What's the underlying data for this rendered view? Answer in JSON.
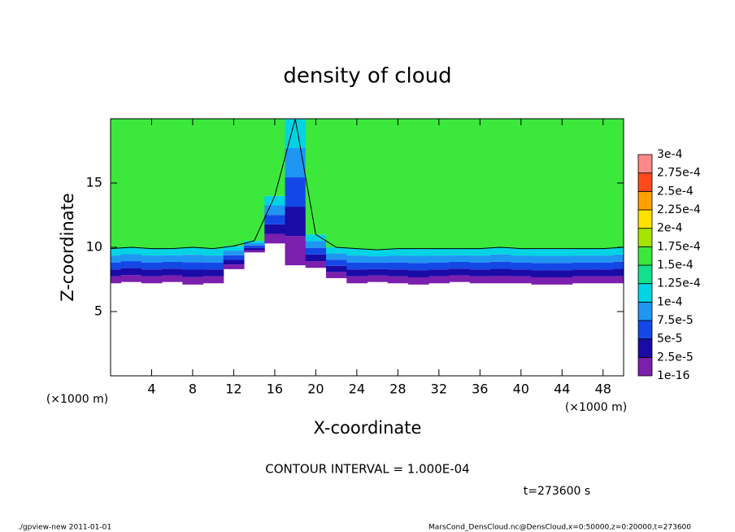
{
  "chart_data": {
    "type": "contour",
    "title": "density of cloud",
    "x_label": "X-coordinate",
    "y_label": "Z-coordinate",
    "x_unit_left": "(×1000 m)",
    "x_unit_right": "(×1000 m)",
    "contour_note": "CONTOUR INTERVAL = 1.000E-04",
    "time_note": "t=273600 s",
    "footer_left": "./gpview-new  2011-01-01",
    "footer_right": "MarsCond_DensCloud.nc@DensCloud,x=0:50000,z=0:20000,t=273600",
    "xlim": [
      0,
      50
    ],
    "ylim": [
      0,
      20
    ],
    "xticks": [
      4,
      8,
      12,
      16,
      20,
      24,
      28,
      32,
      36,
      40,
      44,
      48
    ],
    "yticks": [
      5,
      10,
      15
    ],
    "x": [
      0,
      2,
      4,
      6,
      8,
      10,
      12,
      14,
      16,
      18,
      20,
      22,
      24,
      26,
      28,
      30,
      32,
      34,
      36,
      38,
      40,
      42,
      44,
      46,
      48,
      50
    ],
    "cloud_base_z": [
      7.2,
      7.3,
      7.2,
      7.3,
      7.1,
      7.2,
      8.3,
      9.6,
      10.3,
      8.6,
      8.4,
      7.6,
      7.2,
      7.3,
      7.2,
      7.1,
      7.2,
      7.3,
      7.2,
      7.2,
      7.2,
      7.1,
      7.1,
      7.2,
      7.2,
      7.2
    ],
    "contour_z": [
      9.9,
      10.0,
      9.9,
      9.9,
      10.0,
      9.9,
      10.1,
      10.5,
      14,
      20,
      11,
      10,
      9.9,
      9.8,
      9.9,
      9.9,
      9.9,
      9.9,
      9.9,
      10,
      9.9,
      9.9,
      9.9,
      9.9,
      9.9,
      10.0
    ],
    "levels": [
      {
        "value": 1e-16,
        "label": "1e-16"
      },
      {
        "value": 2.5e-05,
        "label": "2.5e-5"
      },
      {
        "value": 5e-05,
        "label": "5e-5"
      },
      {
        "value": 7.5e-05,
        "label": "7.5e-5"
      },
      {
        "value": 0.0001,
        "label": "1e-4"
      },
      {
        "value": 0.000125,
        "label": "1.25e-4"
      },
      {
        "value": 0.00015,
        "label": "1.5e-4"
      },
      {
        "value": 0.000175,
        "label": "1.75e-4"
      },
      {
        "value": 0.0002,
        "label": "2e-4"
      },
      {
        "value": 0.000225,
        "label": "2.25e-4"
      },
      {
        "value": 0.00025,
        "label": "2.5e-4"
      },
      {
        "value": 0.000275,
        "label": "2.75e-4"
      },
      {
        "value": 0.0003,
        "label": "3e-4"
      }
    ],
    "colors": [
      "#7b1fae",
      "#1a0aa6",
      "#1448e6",
      "#1e96f2",
      "#00d4e4",
      "#12e08c",
      "#3ce83c",
      "#a4e400",
      "#ffe000",
      "#ffa000",
      "#ff4a1e",
      "#ff8888"
    ]
  }
}
